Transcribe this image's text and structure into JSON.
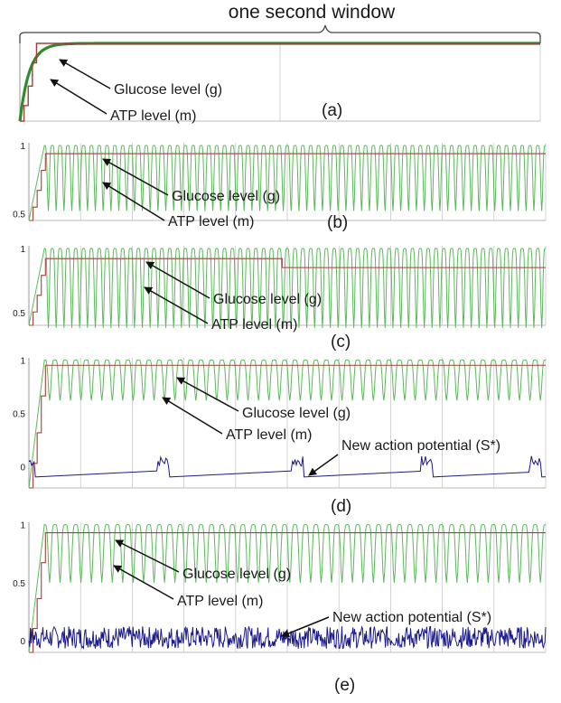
{
  "header": {
    "window_label": "one second window"
  },
  "labels": {
    "glucose": "Glucose level (g)",
    "atp": "ATP level (m)",
    "action_potential": "New action potential (S*)"
  },
  "colors": {
    "glucose": "#2e8b2e",
    "glucose_light": "#5cb85c",
    "atp": "#a0403a",
    "action_potential": "#1a1a8c",
    "grid": "#c8c8c8"
  },
  "chart_data": [
    {
      "id": "a",
      "type": "line",
      "panel_label": "(a)",
      "x_range": [
        0,
        1
      ],
      "ylim": [
        0,
        1
      ],
      "ticks": [],
      "series": [
        {
          "key": "glucose",
          "behavior": "rise-then-flat",
          "steady": 1.0
        },
        {
          "key": "atp",
          "behavior": "step-rise-then-flat",
          "steady": 1.0
        }
      ]
    },
    {
      "id": "b",
      "type": "line",
      "panel_label": "(b)",
      "x_range": [
        0,
        1
      ],
      "ylim": [
        0.45,
        1.02
      ],
      "ticks": [
        "1",
        "0.5"
      ],
      "series": [
        {
          "key": "glucose",
          "behavior": "oscillating",
          "high": 1.0,
          "low": 0.52,
          "cycles": 64
        },
        {
          "key": "atp",
          "behavior": "step-rise-then-flat",
          "steady": 0.94
        }
      ]
    },
    {
      "id": "c",
      "type": "line",
      "panel_label": "(c)",
      "x_range": [
        0,
        1
      ],
      "ylim": [
        0.4,
        1.02
      ],
      "ticks": [
        "1",
        "0.5"
      ],
      "series": [
        {
          "key": "glucose",
          "behavior": "oscillating",
          "high": 1.0,
          "low": 0.38,
          "cycles": 64
        },
        {
          "key": "atp",
          "behavior": "step-rise-then-flat",
          "steady": 0.92,
          "drop_at": 0.49,
          "after": 0.85
        }
      ]
    },
    {
      "id": "d",
      "type": "line",
      "panel_label": "(d)",
      "x_range": [
        0,
        1
      ],
      "ylim": [
        -0.2,
        1.02
      ],
      "ticks": [
        "1",
        "0.5",
        "0"
      ],
      "series": [
        {
          "key": "glucose",
          "behavior": "oscillating",
          "high": 1.0,
          "low": 0.62,
          "cycles": 48
        },
        {
          "key": "atp",
          "behavior": "step-rise-then-flat",
          "steady": 0.95
        },
        {
          "key": "action_potential",
          "behavior": "bursts",
          "bursts_at": [
            0.0,
            0.26,
            0.52,
            0.77,
            0.98
          ],
          "base": -0.1,
          "peak": 0.1
        }
      ]
    },
    {
      "id": "e",
      "type": "line",
      "panel_label": "(e)",
      "x_range": [
        0,
        1
      ],
      "ylim": [
        -0.1,
        1.02
      ],
      "ticks": [
        "1",
        "0.5",
        "0"
      ],
      "series": [
        {
          "key": "glucose",
          "behavior": "oscillating",
          "high": 1.0,
          "low": 0.5,
          "cycles": 48
        },
        {
          "key": "atp",
          "behavior": "step-rise-then-flat",
          "steady": 0.93
        },
        {
          "key": "action_potential",
          "behavior": "noise",
          "base": 0.0,
          "amplitude": 0.12
        }
      ]
    }
  ]
}
